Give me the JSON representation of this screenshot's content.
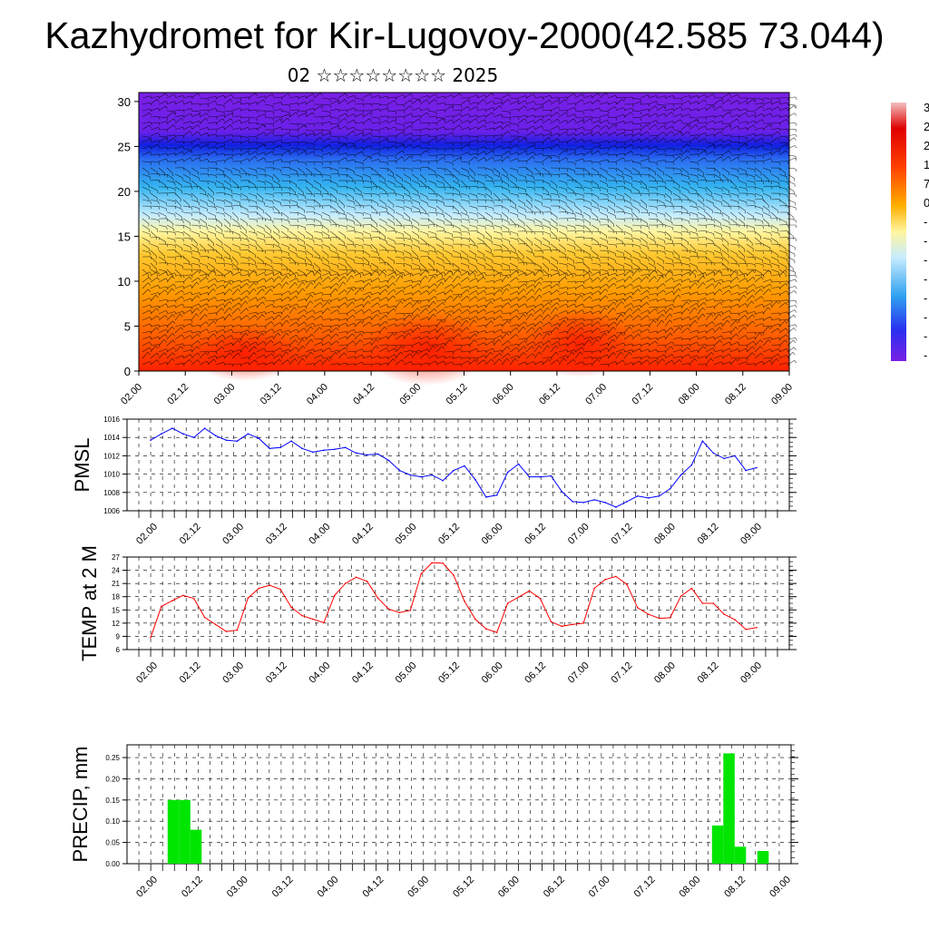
{
  "page": {
    "title": "Kazhydromet for Kir-Lugovoy-2000(42.585 73.044)",
    "subtitle": "02 ☆☆☆☆☆☆☆☆ 2025"
  },
  "chart_data": [
    {
      "type": "heatmap",
      "id": "upper-air",
      "description_free": true,
      "y_ticks": [
        "0",
        "5",
        "10",
        "15",
        "20",
        "25",
        "30"
      ],
      "ylim": [
        0,
        31
      ],
      "x_ticks": [
        "02.00",
        "02.12",
        "03.00",
        "03.12",
        "04.00",
        "04.12",
        "05.00",
        "05.12",
        "06.00",
        "06.12",
        "07.00",
        "07.12",
        "08.00",
        "08.12",
        "09.00"
      ],
      "colorbar_labels": [
        "3",
        "2",
        "2",
        "1",
        "7",
        "0",
        "-",
        "-",
        "-",
        "-",
        "-",
        "-",
        "-",
        "-"
      ],
      "colors": {
        "hot": "#ff2a00",
        "warm": "#ffb400",
        "neutral": "#fff9a0",
        "cool": "#33b5f0",
        "cold": "#1f3cf0",
        "top": "#7a1fe0"
      }
    },
    {
      "type": "line",
      "id": "pmsl",
      "ylabel": "PMSL",
      "ylim": [
        1006,
        1016
      ],
      "y_ticks": [
        "1006",
        "1008",
        "1010",
        "1012",
        "1014",
        "1016"
      ],
      "x_ticks": [
        "02.00",
        "02.12",
        "03.00",
        "03.12",
        "04.00",
        "04.12",
        "05.00",
        "05.12",
        "06.00",
        "06.12",
        "07.00",
        "07.12",
        "08.00",
        "08.12",
        "09.00"
      ],
      "color": "#0000ff",
      "values": [
        1013.7,
        1014.4,
        1015.0,
        1014.4,
        1014.0,
        1015.0,
        1014.2,
        1013.7,
        1013.6,
        1014.4,
        1013.9,
        1012.8,
        1012.9,
        1013.6,
        1012.8,
        1012.4,
        1012.6,
        1012.7,
        1012.9,
        1012.3,
        1012.1,
        1012.2,
        1011.5,
        1010.4,
        1009.9,
        1009.7,
        1009.9,
        1009.3,
        1010.4,
        1010.9,
        1009.4,
        1007.5,
        1007.7,
        1010.2,
        1011.1,
        1009.7,
        1009.7,
        1009.8,
        1008.1,
        1007.0,
        1006.9,
        1007.2,
        1006.9,
        1006.4,
        1007.0,
        1007.6,
        1007.4,
        1007.6,
        1008.4,
        1009.9,
        1011.0,
        1013.6,
        1012.3,
        1011.7,
        1012.0,
        1010.4,
        1010.7
      ]
    },
    {
      "type": "line",
      "id": "temp",
      "ylabel": "TEMP at 2 M",
      "ylim": [
        6,
        27
      ],
      "y_ticks": [
        "6",
        "9",
        "12",
        "15",
        "18",
        "21",
        "24",
        "27"
      ],
      "x_ticks": [
        "02.00",
        "02.12",
        "03.00",
        "03.12",
        "04.00",
        "04.12",
        "05.00",
        "05.12",
        "06.00",
        "06.12",
        "07.00",
        "07.12",
        "08.00",
        "08.12",
        "09.00"
      ],
      "color": "#ff0000",
      "values": [
        8.7,
        15.8,
        17.1,
        18.3,
        17.6,
        13.3,
        11.7,
        10.1,
        10.4,
        17.7,
        19.9,
        20.6,
        19.7,
        15.6,
        13.7,
        12.9,
        12.1,
        18.3,
        21.0,
        22.4,
        21.5,
        17.7,
        15.2,
        14.4,
        14.9,
        23.2,
        25.7,
        25.6,
        22.9,
        17.0,
        12.9,
        10.7,
        9.9,
        16.5,
        17.9,
        19.3,
        17.6,
        12.3,
        11.3,
        11.7,
        12.0,
        19.9,
        21.9,
        22.6,
        20.8,
        15.5,
        14.0,
        13.1,
        13.2,
        18.1,
        19.9,
        16.5,
        16.5,
        14.0,
        12.8,
        10.6,
        11.0
      ]
    },
    {
      "type": "bar",
      "id": "precip",
      "ylabel": "PRECIP, mm",
      "ylim": [
        0,
        0.28
      ],
      "y_ticks": [
        "0.00",
        "0.05",
        "0.10",
        "0.15",
        "0.20",
        "0.25"
      ],
      "x_ticks": [
        "02.00",
        "02.12",
        "03.00",
        "03.12",
        "04.00",
        "04.12",
        "05.00",
        "05.12",
        "06.00",
        "06.12",
        "07.00",
        "07.12",
        "08.00",
        "08.12",
        "09.00"
      ],
      "color": "#00e600",
      "values": [
        0,
        0,
        0.15,
        0.15,
        0.08,
        0,
        0,
        0,
        0,
        0,
        0,
        0,
        0,
        0,
        0,
        0,
        0,
        0,
        0,
        0,
        0,
        0,
        0,
        0,
        0,
        0,
        0,
        0,
        0,
        0,
        0,
        0,
        0,
        0,
        0,
        0,
        0,
        0,
        0,
        0,
        0,
        0,
        0,
        0,
        0,
        0,
        0,
        0,
        0,
        0,
        0.09,
        0.26,
        0.04,
        0,
        0.03,
        0,
        0
      ]
    }
  ]
}
